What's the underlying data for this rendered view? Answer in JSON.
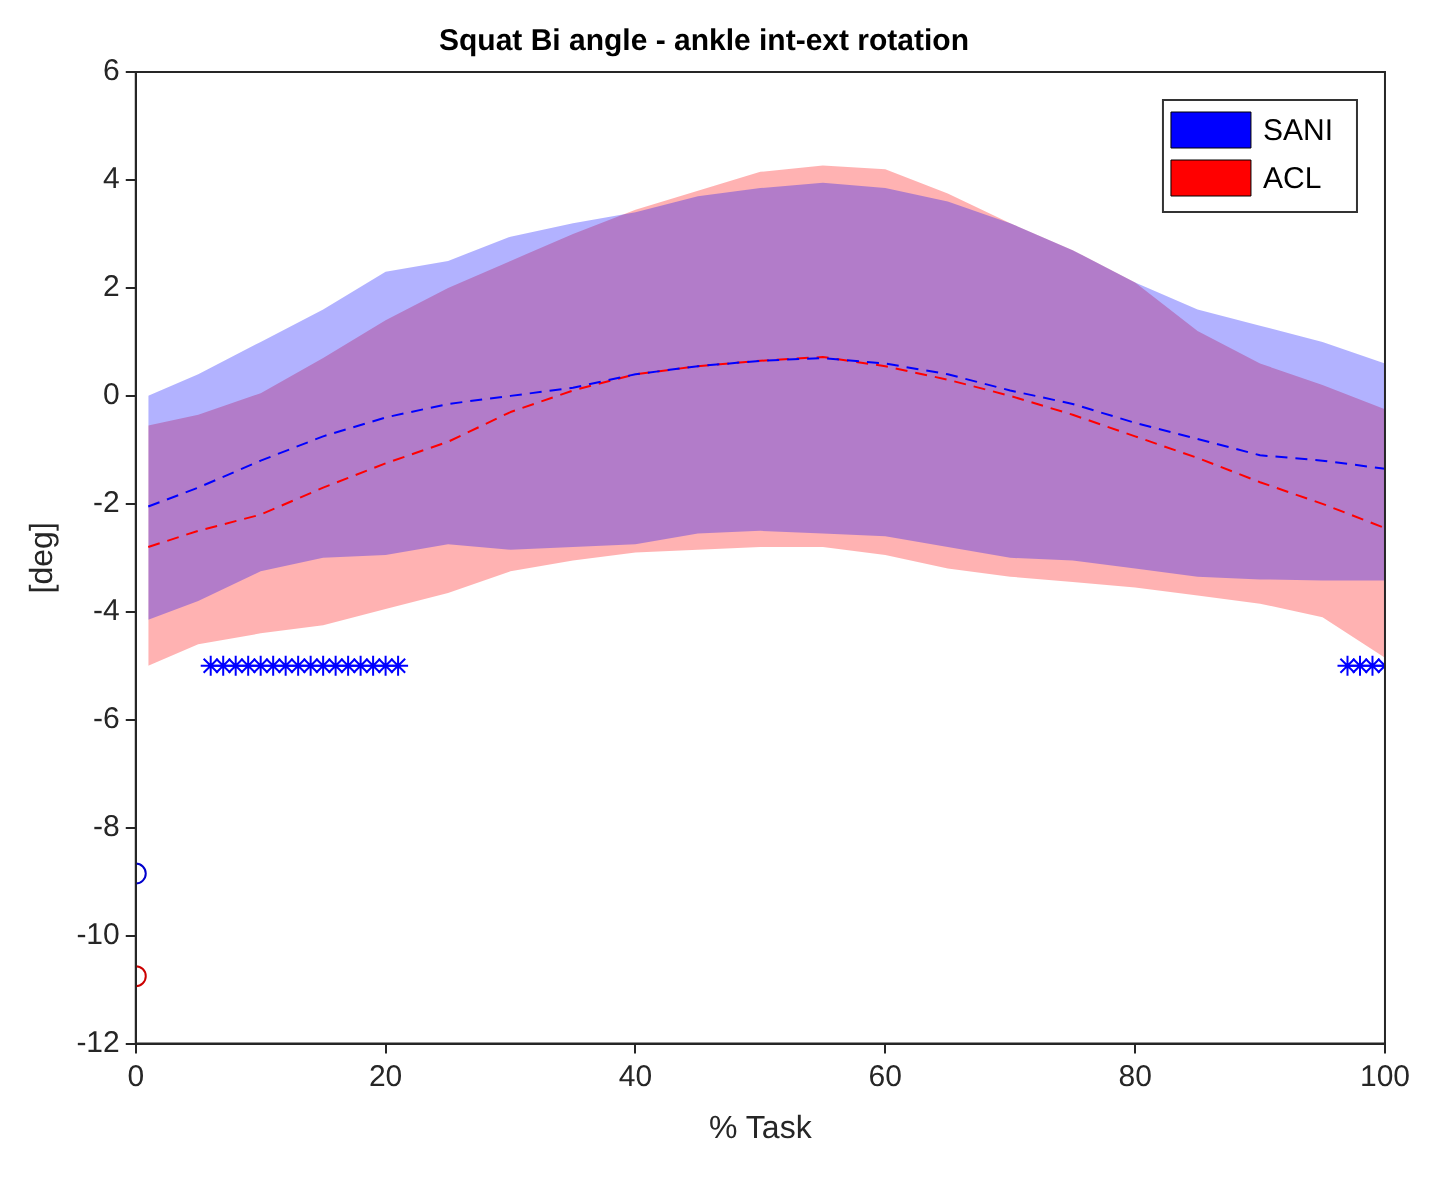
{
  "chart_data": {
    "type": "line",
    "title": "Squat Bi angle - ankle int-ext rotation",
    "xlabel": "% Task",
    "ylabel": "[deg]",
    "xlim": [
      0,
      100
    ],
    "xticks": [
      0,
      20,
      40,
      60,
      80,
      100
    ],
    "ylim": [
      -12,
      6
    ],
    "yticks": [
      -12,
      -10,
      -8,
      -6,
      -4,
      -2,
      0,
      2,
      4,
      6
    ],
    "grid": false,
    "legend": "top right",
    "marker": "none",
    "series": [
      {
        "name": "SANI",
        "color": "#0000ff",
        "line_style": "dashed",
        "x": [
          1,
          5,
          10,
          15,
          20,
          25,
          30,
          35,
          40,
          45,
          50,
          55,
          60,
          65,
          70,
          75,
          80,
          85,
          90,
          95,
          100
        ],
        "values": [
          -2.05,
          -1.7,
          -1.2,
          -0.75,
          -0.4,
          -0.15,
          0.0,
          0.15,
          0.4,
          0.55,
          0.65,
          0.7,
          0.6,
          0.4,
          0.1,
          -0.15,
          -0.5,
          -0.8,
          -1.1,
          -1.2,
          -1.35
        ],
        "upper": [
          0.0,
          0.4,
          1.0,
          1.6,
          2.3,
          2.5,
          2.95,
          3.2,
          3.4,
          3.7,
          3.85,
          3.95,
          3.85,
          3.6,
          3.2,
          2.7,
          2.1,
          1.6,
          1.3,
          1.0,
          0.6
        ],
        "lower": [
          -4.15,
          -3.8,
          -3.25,
          -3.0,
          -2.95,
          -2.75,
          -2.85,
          -2.8,
          -2.75,
          -2.55,
          -2.5,
          -2.55,
          -2.6,
          -2.8,
          -3.0,
          -3.05,
          -3.2,
          -3.35,
          -3.4,
          -3.42,
          -3.42
        ]
      },
      {
        "name": "ACL",
        "color": "#ff0000",
        "line_style": "dashed",
        "x": [
          1,
          5,
          10,
          15,
          20,
          25,
          30,
          35,
          40,
          45,
          50,
          55,
          60,
          65,
          70,
          75,
          80,
          85,
          90,
          95,
          100
        ],
        "values": [
          -2.8,
          -2.5,
          -2.2,
          -1.7,
          -1.25,
          -0.85,
          -0.3,
          0.1,
          0.4,
          0.55,
          0.65,
          0.72,
          0.55,
          0.3,
          0.0,
          -0.35,
          -0.75,
          -1.15,
          -1.6,
          -2.0,
          -2.45
        ],
        "upper": [
          -0.55,
          -0.35,
          0.05,
          0.7,
          1.4,
          2.0,
          2.5,
          3.0,
          3.45,
          3.8,
          4.15,
          4.27,
          4.2,
          3.75,
          3.2,
          2.7,
          2.1,
          1.2,
          0.6,
          0.2,
          -0.25
        ],
        "lower": [
          -5.0,
          -4.6,
          -4.4,
          -4.25,
          -3.95,
          -3.65,
          -3.25,
          -3.05,
          -2.9,
          -2.85,
          -2.8,
          -2.8,
          -2.95,
          -3.2,
          -3.35,
          -3.45,
          -3.55,
          -3.7,
          -3.85,
          -4.1,
          -4.85
        ]
      },
      {
        "type": "scatter",
        "color": "#0000ff",
        "marker": "cross",
        "x": [
          6,
          7,
          8,
          9,
          10,
          11,
          12,
          13,
          14,
          15,
          16,
          17,
          18,
          19,
          20,
          21,
          97,
          98,
          99,
          100
        ],
        "values": [
          -5,
          -5,
          -5,
          -5,
          -5,
          -5,
          -5,
          -5,
          -5,
          -5,
          -5,
          -5,
          -5,
          -5,
          -5,
          -5,
          -5,
          -5,
          -5,
          -5
        ]
      },
      {
        "type": "scatter",
        "color": "#0000cc",
        "marker": "circle",
        "x": [
          0
        ],
        "values": [
          -8.85
        ]
      },
      {
        "type": "scatter",
        "color": "#cc0000",
        "marker": "circle",
        "x": [
          0
        ],
        "values": [
          -10.75
        ]
      }
    ]
  }
}
